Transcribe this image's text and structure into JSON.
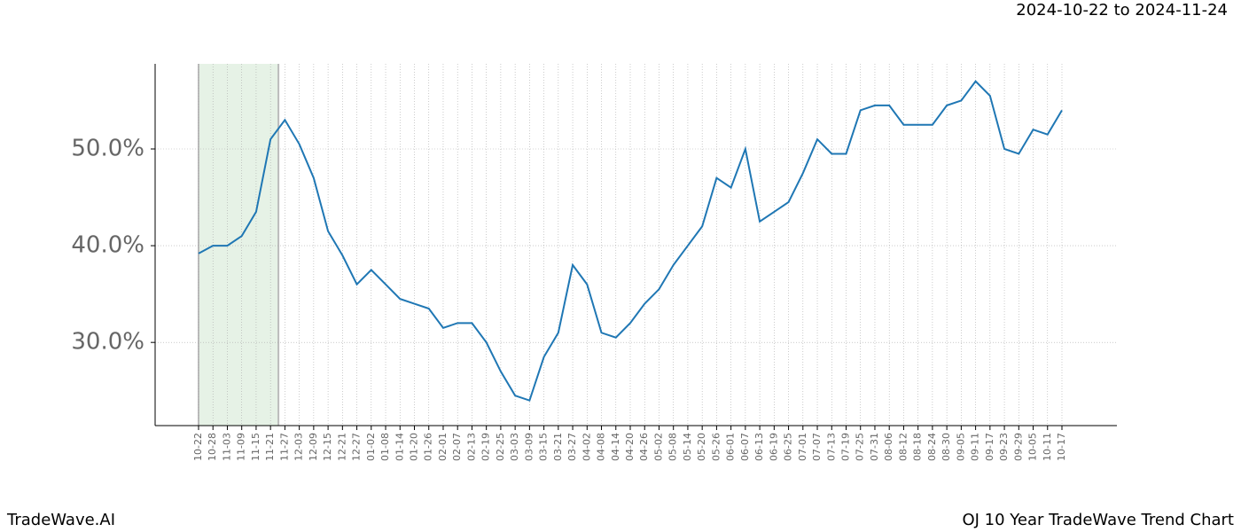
{
  "chart_data": {
    "type": "line",
    "title": "2024-10-22 to 2024-11-24",
    "footer_left": "TradeWave.AI",
    "footer_right": "OJ 10 Year TradeWave Trend Chart",
    "categories": [
      "10-22",
      "10-28",
      "11-03",
      "11-09",
      "11-15",
      "11-21",
      "11-27",
      "12-03",
      "12-09",
      "12-15",
      "12-21",
      "12-27",
      "01-02",
      "01-08",
      "01-14",
      "01-20",
      "01-26",
      "02-01",
      "02-07",
      "02-13",
      "02-19",
      "02-25",
      "03-03",
      "03-09",
      "03-15",
      "03-21",
      "03-27",
      "04-02",
      "04-08",
      "04-14",
      "04-20",
      "04-26",
      "05-02",
      "05-08",
      "05-14",
      "05-20",
      "05-26",
      "06-01",
      "06-07",
      "06-13",
      "06-19",
      "06-25",
      "07-01",
      "07-07",
      "07-13",
      "07-19",
      "07-25",
      "07-31",
      "08-06",
      "08-12",
      "08-18",
      "08-24",
      "08-30",
      "09-05",
      "09-11",
      "09-17",
      "09-23",
      "09-29",
      "10-05",
      "10-11",
      "10-17"
    ],
    "series": [
      {
        "color": "#1f77b4",
        "values": [
          39.2,
          40.0,
          40.0,
          41.0,
          43.5,
          51.0,
          53.0,
          50.5,
          47.0,
          41.5,
          39.0,
          36.0,
          37.5,
          36.0,
          34.5,
          34.0,
          33.5,
          31.5,
          32.0,
          32.0,
          30.0,
          27.0,
          24.5,
          24.0,
          28.5,
          31.0,
          38.0,
          36.0,
          31.0,
          30.5,
          32.0,
          34.0,
          35.5,
          38.0,
          40.0,
          42.0,
          47.0,
          46.0,
          50.0,
          42.5,
          43.5,
          44.5,
          47.5,
          51.0,
          49.5,
          49.5,
          54.0,
          54.5,
          54.5,
          52.5,
          52.5,
          52.5,
          54.5,
          55.0,
          57.0,
          55.5,
          50.0,
          49.5,
          52.0,
          51.5,
          54.0
        ]
      }
    ],
    "ylim": [
      21.4,
      58.8
    ],
    "yticks": [
      {
        "value": 30,
        "label": "30.0%"
      },
      {
        "value": 40,
        "label": "40.0%"
      },
      {
        "value": 50,
        "label": "50.0%"
      }
    ],
    "grid": true,
    "highlight_color": "#e6f2e6"
  }
}
